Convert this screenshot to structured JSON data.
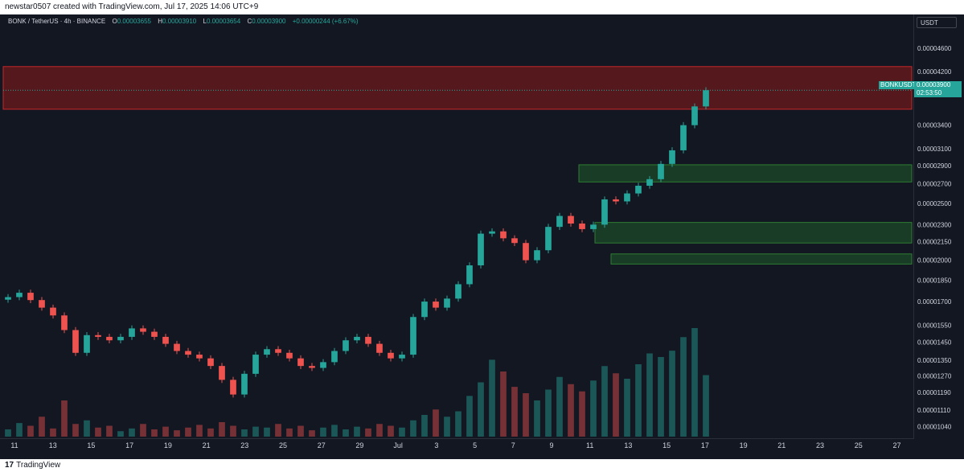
{
  "header": {
    "credit": "newstar0507 created with TradingView.com, Jul 17, 2025 14:06 UTC+9"
  },
  "legend": {
    "symbol": "BONK / TetherUS · 4h · BINANCE",
    "o_label": "O",
    "o_value": "0.00003655",
    "h_label": "H",
    "h_value": "0.00003910",
    "l_label": "L",
    "l_value": "0.00003654",
    "c_label": "C",
    "c_value": "0.00003900",
    "change": "+0.00000244 (+6.67%)"
  },
  "price_axis": {
    "unit": "USDT"
  },
  "last_price": {
    "symbol": "BONKUSDT",
    "price": "0.00003900",
    "countdown": "02:53:50"
  },
  "footer": {
    "brand": "TradingView"
  },
  "colors": {
    "up": "#26a69a",
    "down": "#ef5350",
    "resistance_zone": "#8b1a1a",
    "support_zone": "#1f5b2a",
    "background": "#131722"
  },
  "chart_data": {
    "type": "candlestick",
    "y_scale": "log",
    "ylim": [
      1e-05,
      4.9e-05
    ],
    "y_ticks": [
      "0.00004600",
      "0.00004200",
      "0.00003400",
      "0.00003100",
      "0.00002900",
      "0.00002700",
      "0.00002500",
      "0.00002300",
      "0.00002150",
      "0.00002000",
      "0.00001850",
      "0.00001700",
      "0.00001550",
      "0.00001450",
      "0.00001350",
      "0.00001270",
      "0.00001190",
      "0.00001110",
      "0.00001040"
    ],
    "x_ticks": [
      "11",
      "13",
      "15",
      "17",
      "19",
      "21",
      "23",
      "25",
      "27",
      "29",
      "Jul",
      "3",
      "5",
      "7",
      "9",
      "11",
      "13",
      "15",
      "17",
      "19",
      "21",
      "23",
      "25",
      "27"
    ],
    "series_close": [
      1.73e-05,
      1.76e-05,
      1.71e-05,
      1.66e-05,
      1.61e-05,
      1.52e-05,
      1.39e-05,
      1.49e-05,
      1.48e-05,
      1.46e-05,
      1.48e-05,
      1.53e-05,
      1.51e-05,
      1.48e-05,
      1.44e-05,
      1.4e-05,
      1.38e-05,
      1.36e-05,
      1.32e-05,
      1.25e-05,
      1.18e-05,
      1.28e-05,
      1.38e-05,
      1.41e-05,
      1.39e-05,
      1.36e-05,
      1.32e-05,
      1.31e-05,
      1.34e-05,
      1.4e-05,
      1.46e-05,
      1.48e-05,
      1.44e-05,
      1.39e-05,
      1.36e-05,
      1.38e-05,
      1.6e-05,
      1.7e-05,
      1.66e-05,
      1.72e-05,
      1.82e-05,
      1.96e-05,
      2.22e-05,
      2.24e-05,
      2.18e-05,
      2.14e-05,
      2e-05,
      2.08e-05,
      2.28e-05,
      2.38e-05,
      2.31e-05,
      2.26e-05,
      2.3e-05,
      2.54e-05,
      2.52e-05,
      2.6e-05,
      2.68e-05,
      2.75e-05,
      2.92e-05,
      3.08e-05,
      3.4e-05,
      3.66e-05,
      3.9e-05
    ],
    "zones": [
      {
        "kind": "resistance",
        "from": 3.62e-05,
        "to": 4.28e-05
      },
      {
        "kind": "support",
        "from": 2.72e-05,
        "to": 2.91e-05
      },
      {
        "kind": "support",
        "from": 2.14e-05,
        "to": 2.32e-05
      },
      {
        "kind": "support",
        "from": 1.97e-05,
        "to": 2.05e-05
      }
    ],
    "volume": [
      8,
      15,
      12,
      22,
      9,
      40,
      14,
      18,
      10,
      12,
      6,
      9,
      14,
      8,
      11,
      7,
      10,
      13,
      9,
      16,
      12,
      8,
      11,
      10,
      14,
      9,
      12,
      7,
      10,
      13,
      8,
      11,
      9,
      14,
      12,
      10,
      18,
      24,
      30,
      22,
      28,
      45,
      60,
      85,
      72,
      55,
      48,
      40,
      52,
      66,
      58,
      50,
      62,
      78,
      70,
      64,
      80,
      92,
      88,
      95,
      110,
      120,
      68
    ]
  }
}
